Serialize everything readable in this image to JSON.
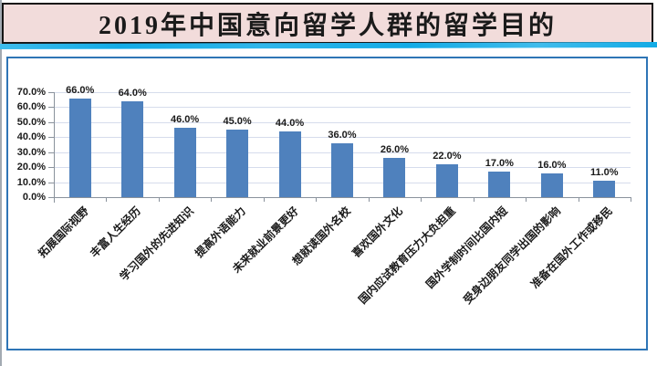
{
  "header": {
    "title": "2019年中国意向留学人群的留学目的"
  },
  "colors": {
    "banner-bg": "#F2DCDB",
    "banner-border": "#151515",
    "divider-cyan": "#12ABE6",
    "chart-border": "#2E75B6",
    "bar-fill": "#4F81BD",
    "gridline": "#D6DCEC",
    "axis": "#8A929C",
    "text": "#1A1A1A"
  },
  "chart_data": {
    "type": "bar",
    "title": "2019年中国意向留学人群的留学目的",
    "categories": [
      "拓展国际视野",
      "丰富人生经历",
      "学习国外的先进知识",
      "提高外语能力",
      "未来就业前景更好",
      "想就读国外名校",
      "喜欢国外文化",
      "国内应试教育压力大负担重",
      "国外学制时间比国内短",
      "受身边朋友同学出国的影响",
      "准备在国外工作或移民"
    ],
    "values": [
      66,
      64,
      46,
      45,
      44,
      36,
      26,
      22,
      17,
      16,
      11
    ],
    "value_labels": [
      "66.0%",
      "64.0%",
      "46.0%",
      "45.0%",
      "44.0%",
      "36.0%",
      "26.0%",
      "22.0%",
      "17.0%",
      "16.0%",
      "11.0%"
    ],
    "xlabel": "",
    "ylabel": "",
    "ylim": [
      0,
      70
    ],
    "ytick_step": 10,
    "ytick_labels": [
      "0.0%",
      "10.0%",
      "20.0%",
      "30.0%",
      "40.0%",
      "50.0%",
      "60.0%",
      "70.0%"
    ],
    "grid": true,
    "legend": false
  }
}
